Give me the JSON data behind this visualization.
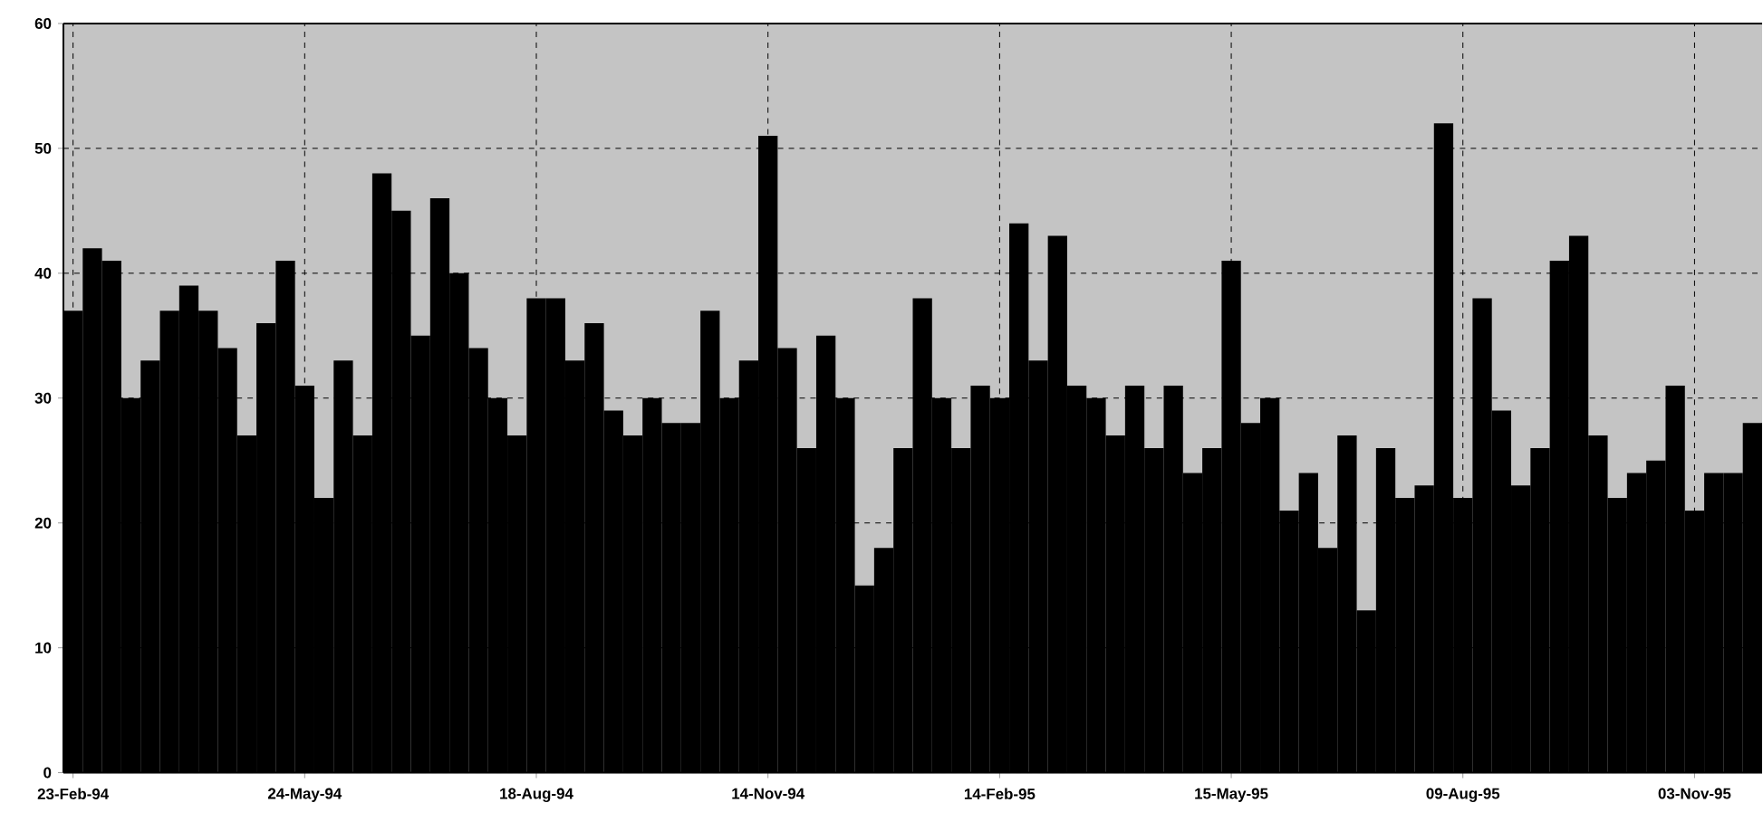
{
  "chart_data": {
    "type": "bar",
    "categories": [
      "23-Feb-94",
      null,
      null,
      null,
      null,
      null,
      null,
      null,
      null,
      null,
      null,
      null,
      "24-May-94",
      null,
      null,
      null,
      null,
      null,
      null,
      null,
      null,
      null,
      null,
      null,
      "18-Aug-94",
      null,
      null,
      null,
      null,
      null,
      null,
      null,
      null,
      null,
      null,
      null,
      "14-Nov-94",
      null,
      null,
      null,
      null,
      null,
      null,
      null,
      null,
      null,
      null,
      null,
      "14-Feb-95",
      null,
      null,
      null,
      null,
      null,
      null,
      null,
      null,
      null,
      null,
      null,
      "15-May-95",
      null,
      null,
      null,
      null,
      null,
      null,
      null,
      null,
      null,
      null,
      null,
      "09-Aug-95",
      null,
      null,
      null,
      null,
      null,
      null,
      null,
      null,
      null,
      null,
      null,
      "03-Nov-95",
      null,
      null,
      null
    ],
    "values": [
      37,
      42,
      41,
      30,
      33,
      37,
      39,
      37,
      34,
      27,
      36,
      41,
      31,
      22,
      33,
      27,
      48,
      45,
      35,
      46,
      40,
      34,
      30,
      27,
      38,
      38,
      33,
      36,
      29,
      27,
      30,
      28,
      28,
      37,
      30,
      33,
      51,
      34,
      26,
      35,
      30,
      15,
      18,
      26,
      38,
      30,
      26,
      31,
      30,
      44,
      33,
      43,
      31,
      30,
      27,
      31,
      26,
      31,
      24,
      26,
      41,
      28,
      30,
      21,
      24,
      18,
      27,
      13,
      26,
      22,
      23,
      52,
      22,
      38,
      29,
      23,
      26,
      41,
      43,
      27,
      22,
      24,
      25,
      31,
      21,
      24,
      24,
      28
    ],
    "color": "#000000",
    "ylim": [
      0,
      60
    ],
    "yticks": [
      0,
      10,
      20,
      30,
      40,
      50,
      60
    ],
    "grid": true
  }
}
